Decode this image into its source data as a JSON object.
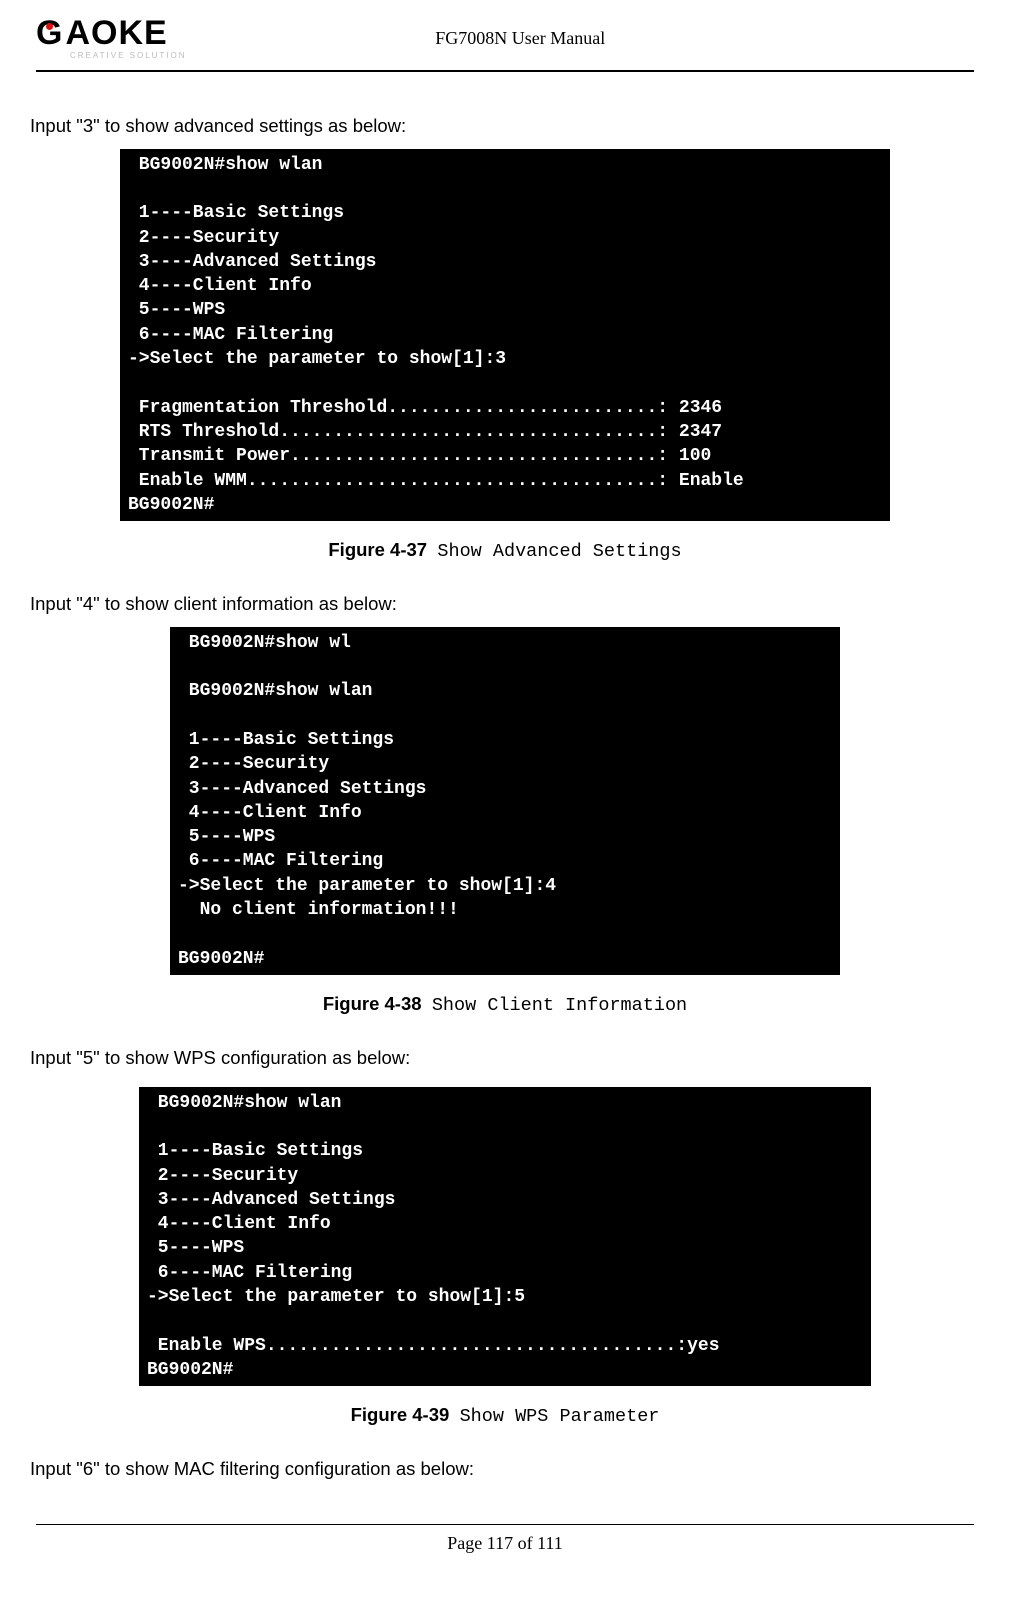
{
  "header": {
    "logo_text": "GAOKE",
    "logo_sub": "CREATIVE SOLUTION",
    "doc_title": "FG7008N User Manual"
  },
  "section1": {
    "intro": "Input \"3\" to show advanced settings as below:",
    "terminal": " BG9002N#show wlan\n\n 1----Basic Settings\n 2----Security\n 3----Advanced Settings\n 4----Client Info\n 5----WPS\n 6----MAC Filtering\n->Select the parameter to show[1]:3\n\n Fragmentation Threshold.........................: 2346\n RTS Threshold...................................: 2347\n Transmit Power..................................: 100\n Enable WMM......................................: Enable\nBG9002N#",
    "caption_bold": "Figure 4-37",
    "caption_label": "Show Advanced Settings"
  },
  "section2": {
    "intro": "Input \"4\" to show client information as below:",
    "terminal": " BG9002N#show wl\n\n BG9002N#show wlan\n\n 1----Basic Settings\n 2----Security\n 3----Advanced Settings\n 4----Client Info\n 5----WPS\n 6----MAC Filtering\n->Select the parameter to show[1]:4\n  No client information!!!\n\nBG9002N#",
    "caption_bold": "Figure 4-38",
    "caption_label": "Show Client Information"
  },
  "section3": {
    "intro": "Input \"5\" to show WPS configuration as below:",
    "terminal": " BG9002N#show wlan\n\n 1----Basic Settings\n 2----Security\n 3----Advanced Settings\n 4----Client Info\n 5----WPS\n 6----MAC Filtering\n->Select the parameter to show[1]:5\n\n Enable WPS......................................:yes\nBG9002N#",
    "caption_bold": "Figure 4-39",
    "caption_label": "Show WPS Parameter"
  },
  "section4": {
    "intro": "Input \"6\" to show MAC filtering configuration as below:"
  },
  "footer": {
    "page_num": "Page 117 of 111"
  },
  "colors": {
    "terminal_bg": "#000000",
    "terminal_fg": "#ffffff",
    "page_bg": "#ffffff",
    "text": "#000000",
    "logo_dot": "#dd1111"
  },
  "fonts": {
    "body": "Arial",
    "terminal": "Courier New",
    "caption_label": "SimSun / monospace"
  }
}
